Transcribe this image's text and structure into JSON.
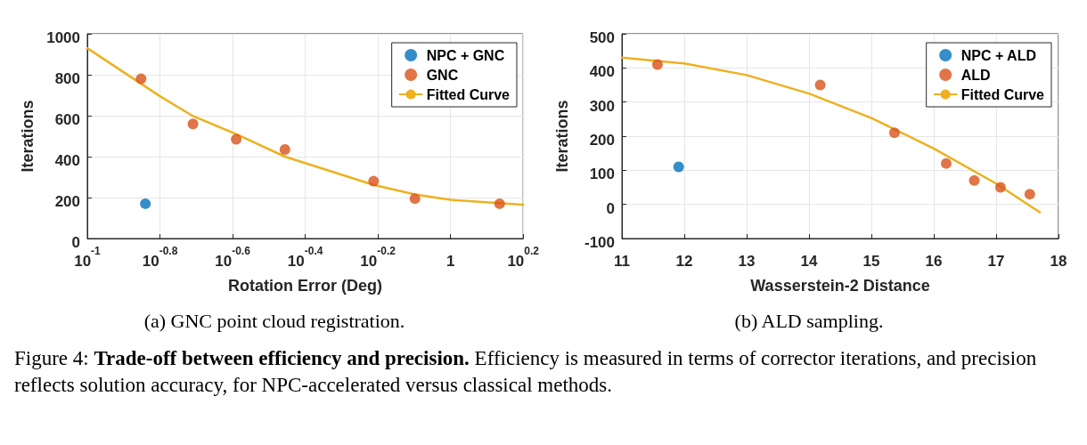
{
  "chart_data": [
    {
      "type": "scatter",
      "xlabel": "Rotation Error (Deg)",
      "ylabel": "Iterations",
      "log": "x",
      "xlim": [
        0.1,
        1.5849
      ],
      "xticks": [
        {
          "value": 0.1,
          "label": "10$^{-1}$"
        },
        {
          "value": 0.15849,
          "label": "10$^{-0.8}$"
        },
        {
          "value": 0.25119,
          "label": "10$^{-0.6}$"
        },
        {
          "value": 0.39811,
          "label": "10$^{-0.4}$"
        },
        {
          "value": 0.63096,
          "label": "10$^{-0.2}$"
        },
        1,
        {
          "value": 1.5849,
          "label": "10$^{0.2}$"
        }
      ],
      "ylim": [
        0,
        1000
      ],
      "yticks": [
        0,
        200,
        400,
        600,
        800,
        1000
      ],
      "grid": true,
      "legend": "top right",
      "marker": "circle",
      "series": [
        {
          "name": "NPC + GNC",
          "color": "#0072bd",
          "x": [
            0.1445
          ],
          "values": [
            170
          ]
        },
        {
          "name": "GNC",
          "color": "#d95319",
          "x": [
            0.1406,
            0.1954,
            0.257,
            0.35,
            0.614,
            0.798,
            1.365
          ],
          "values": [
            780,
            560,
            485,
            435,
            280,
            195,
            170
          ]
        },
        {
          "name": "Fitted Curve",
          "type": "line",
          "marker": "none",
          "line_style": "solid",
          "color": "#edb120",
          "x": [
            0.1,
            0.1585,
            0.1954,
            0.257,
            0.35,
            0.614,
            0.798,
            1,
            1.5849
          ],
          "values": [
            930,
            695,
            598,
            510,
            400,
            262,
            215,
            189,
            165
          ]
        }
      ],
      "annotations": [
        "(a) GNC point cloud registration."
      ]
    },
    {
      "type": "scatter",
      "xlabel": "Wasserstein-2 Distance",
      "ylabel": "Iterations",
      "xlim": [
        11,
        18
      ],
      "xticks": [
        11,
        12,
        13,
        14,
        15,
        16,
        17,
        18
      ],
      "ylim": [
        -100,
        500
      ],
      "yticks": [
        -100,
        0,
        100,
        200,
        300,
        400,
        500
      ],
      "grid": true,
      "legend": "top right",
      "marker": "circle",
      "series": [
        {
          "name": "NPC + ALD",
          "color": "#0072bd",
          "x": [
            11.91
          ],
          "values": [
            110
          ]
        },
        {
          "name": "ALD",
          "color": "#d95319",
          "x": [
            11.57,
            14.18,
            15.37,
            16.2,
            16.65,
            17.07,
            17.54
          ],
          "values": [
            410,
            350,
            210,
            120,
            70,
            50,
            30
          ]
        },
        {
          "name": "Fitted Curve",
          "type": "line",
          "marker": "none",
          "line_style": "solid",
          "color": "#edb120",
          "x": [
            11,
            12,
            13,
            14,
            15,
            16,
            17,
            17.7
          ],
          "values": [
            430,
            413,
            379,
            325,
            253,
            164,
            61,
            -23
          ]
        }
      ],
      "annotations": [
        "(b) ALD sampling.",
        "Figure 4:",
        "Trade-off between efficiency and precision.",
        "Efficiency is measured in terms of corrector iterations, and precision reflects solution accuracy, for NPC-accelerated versus classical methods."
      ]
    }
  ]
}
